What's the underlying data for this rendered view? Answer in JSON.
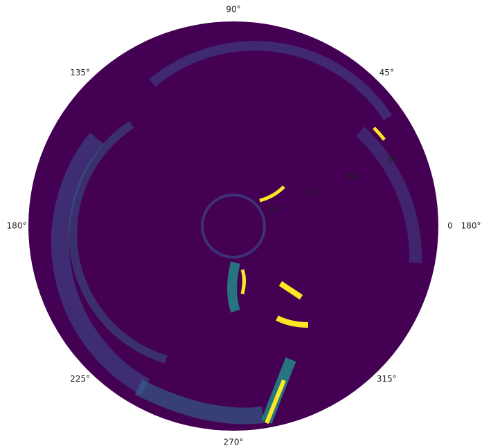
{
  "chart_data": {
    "type": "polar",
    "rlim": [
      0,
      95
    ],
    "rticks": [
      20,
      40,
      60,
      80
    ],
    "rlabel_angle": 22.5,
    "thetaticks": [
      {
        "value": 0,
        "label": "0"
      },
      {
        "value": 45,
        "label": "45°"
      },
      {
        "value": 90,
        "label": "90°"
      },
      {
        "value": 135,
        "label": "135°"
      },
      {
        "value": 180,
        "label": "180°"
      },
      {
        "value": 225,
        "label": "225°"
      },
      {
        "value": 270,
        "label": "270°"
      },
      {
        "value": 315,
        "label": "315°"
      }
    ],
    "neighbor_label": "180°",
    "background": "#440154"
  }
}
